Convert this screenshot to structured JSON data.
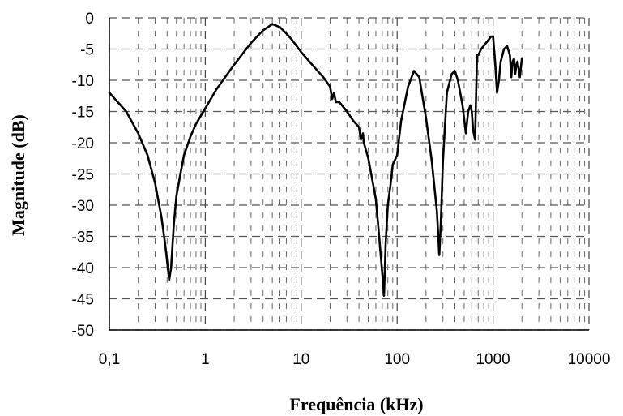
{
  "chart_data": {
    "type": "line",
    "title": "",
    "xlabel": "Frequência (kHz)",
    "ylabel": "Magnitude (dB)",
    "x_scale": "log",
    "xlim": [
      0.1,
      10000
    ],
    "ylim": [
      -50,
      0
    ],
    "x_ticks": [
      0.1,
      1,
      10,
      100,
      1000,
      10000
    ],
    "x_tick_labels": [
      "0,1",
      "1",
      "10",
      "100",
      "1000",
      "10000"
    ],
    "y_ticks": [
      0,
      -5,
      -10,
      -15,
      -20,
      -25,
      -30,
      -35,
      -40,
      -45,
      -50
    ],
    "y_tick_labels": [
      "0",
      "-5",
      "-10",
      "-15",
      "-20",
      "-25",
      "-30",
      "-35",
      "-40",
      "-45",
      "-50"
    ],
    "grid": true,
    "grid_style": "dashed",
    "line_color": "#000000",
    "series": [
      {
        "x": [
          0.1,
          0.15,
          0.2,
          0.25,
          0.3,
          0.35,
          0.38,
          0.4,
          0.42,
          0.44,
          0.47,
          0.5,
          0.55,
          0.6,
          0.7,
          0.8,
          1,
          1.3,
          2,
          3,
          4,
          5,
          6,
          7,
          8,
          10,
          13,
          17,
          20,
          21,
          22,
          23,
          25,
          30,
          35,
          40,
          42,
          44,
          45,
          50,
          60,
          65,
          70,
          73,
          76,
          80,
          85,
          90,
          100,
          110,
          130,
          150,
          170,
          200,
          230,
          260,
          275,
          285,
          300,
          330,
          370,
          400,
          430,
          480,
          520,
          550,
          580,
          600,
          620,
          650,
          680,
          700,
          750,
          800,
          900,
          950,
          1000,
          1050,
          1100,
          1150,
          1200,
          1300,
          1400,
          1500,
          1550,
          1600,
          1650,
          1700,
          1750,
          1800,
          1900,
          2000
        ],
        "y": [
          -12,
          -15,
          -18.5,
          -22,
          -26.5,
          -32,
          -36,
          -39,
          -42,
          -40,
          -33,
          -28.5,
          -25,
          -22,
          -19,
          -17,
          -14.5,
          -11.5,
          -7.5,
          -4,
          -2,
          -1,
          -1.5,
          -2.5,
          -3.5,
          -5.5,
          -7.5,
          -9.5,
          -11,
          -13,
          -12,
          -13.5,
          -13.5,
          -15,
          -16.5,
          -17.5,
          -19.5,
          -18.5,
          -20,
          -22.5,
          -29,
          -35,
          -41,
          -44.5,
          -36,
          -30,
          -27,
          -23.5,
          -22,
          -16.5,
          -11,
          -8.5,
          -9.5,
          -16,
          -23,
          -31,
          -38,
          -33,
          -23,
          -12,
          -9,
          -8.5,
          -10,
          -14,
          -18.5,
          -15,
          -14,
          -15,
          -18,
          -19.5,
          -6,
          -6,
          -5,
          -4.5,
          -3.5,
          -3,
          -3,
          -7,
          -12,
          -10,
          -7,
          -5,
          -4.5,
          -6,
          -9.5,
          -7,
          -6.5,
          -9,
          -7.5,
          -7,
          -9.5,
          -6.5
        ]
      }
    ]
  }
}
